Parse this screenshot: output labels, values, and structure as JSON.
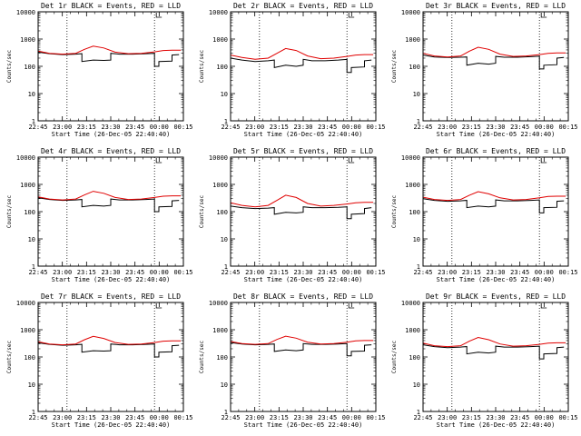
{
  "chart_data": [
    {
      "type": "line",
      "title": "Det 1r BLACK = Events, RED = LLD",
      "xlabel": "Start Time (26-Dec-05 22:40:40)",
      "ylabel": "Counts/sec",
      "ylog": true,
      "ylim": [
        1,
        10000
      ],
      "yticks": [
        "1",
        "10",
        "100",
        "1000",
        "10000"
      ],
      "xlim": [
        22.67,
        24.33
      ],
      "xticks": [
        "22:45",
        "23:00",
        "23:15",
        "23:30",
        "23:45",
        "00:00",
        "00:15"
      ],
      "vlines": [
        23.0,
        24.0
      ],
      "series": [
        {
          "color": "#000000",
          "x": [
            22.67,
            22.8,
            22.95,
            23.1,
            23.17,
            23.17,
            23.3,
            23.42,
            23.5,
            23.5,
            23.6,
            23.75,
            23.9,
            24.0,
            24.0,
            24.05,
            24.05,
            24.2,
            24.2,
            24.28
          ],
          "values": [
            330,
            290,
            270,
            280,
            290,
            150,
            170,
            165,
            170,
            300,
            280,
            280,
            290,
            300,
            100,
            100,
            150,
            155,
            260,
            270
          ]
        },
        {
          "color": "#e00000",
          "x": [
            22.67,
            22.8,
            22.95,
            23.1,
            23.2,
            23.3,
            23.42,
            23.55,
            23.7,
            23.85,
            24.0,
            24.1,
            24.2,
            24.3
          ],
          "values": [
            360,
            300,
            280,
            300,
            420,
            550,
            470,
            330,
            290,
            300,
            340,
            380,
            390,
            390
          ]
        }
      ]
    },
    {
      "type": "line",
      "title": "Det 2r BLACK = Events, RED = LLD",
      "xlabel": "Start Time (26-Dec-05 22:40:40)",
      "ylabel": "Counts/sec",
      "ylog": true,
      "ylim": [
        1,
        10000
      ],
      "yticks": [
        "1",
        "10",
        "100",
        "1000",
        "10000"
      ],
      "xlim": [
        22.67,
        24.33
      ],
      "xticks": [
        "22:45",
        "23:00",
        "23:15",
        "23:30",
        "23:45",
        "00:00",
        "00:15"
      ],
      "vlines": [
        23.0,
        24.0
      ],
      "series": [
        {
          "color": "#000000",
          "x": [
            22.67,
            22.8,
            22.95,
            23.1,
            23.17,
            23.17,
            23.3,
            23.42,
            23.5,
            23.5,
            23.6,
            23.75,
            23.9,
            24.0,
            24.0,
            24.05,
            24.05,
            24.2,
            24.2,
            24.28
          ],
          "values": [
            200,
            170,
            150,
            160,
            170,
            90,
            110,
            100,
            110,
            180,
            160,
            160,
            170,
            180,
            60,
            60,
            90,
            95,
            160,
            170
          ]
        },
        {
          "color": "#e00000",
          "x": [
            22.67,
            22.8,
            22.95,
            23.1,
            23.2,
            23.3,
            23.42,
            23.55,
            23.7,
            23.85,
            24.0,
            24.1,
            24.2,
            24.3
          ],
          "values": [
            260,
            210,
            180,
            200,
            300,
            450,
            380,
            240,
            190,
            200,
            230,
            260,
            270,
            270
          ]
        }
      ]
    },
    {
      "type": "line",
      "title": "Det 3r BLACK = Events, RED = LLD",
      "xlabel": "Start Time (26-Dec-05 22:40:40)",
      "ylabel": "Counts/sec",
      "ylog": true,
      "ylim": [
        1,
        10000
      ],
      "yticks": [
        "1",
        "10",
        "100",
        "1000",
        "10000"
      ],
      "xlim": [
        22.67,
        24.33
      ],
      "xticks": [
        "22:45",
        "23:00",
        "23:15",
        "23:30",
        "23:45",
        "00:00",
        "00:15"
      ],
      "vlines": [
        23.0,
        24.0
      ],
      "series": [
        {
          "color": "#000000",
          "x": [
            22.67,
            22.8,
            22.95,
            23.1,
            23.17,
            23.17,
            23.3,
            23.42,
            23.5,
            23.5,
            23.6,
            23.75,
            23.9,
            24.0,
            24.0,
            24.05,
            24.05,
            24.2,
            24.2,
            24.28
          ],
          "values": [
            260,
            220,
            210,
            215,
            220,
            110,
            130,
            120,
            130,
            230,
            215,
            215,
            225,
            235,
            80,
            80,
            110,
            115,
            200,
            210
          ]
        },
        {
          "color": "#e00000",
          "x": [
            22.67,
            22.8,
            22.95,
            23.1,
            23.2,
            23.3,
            23.42,
            23.55,
            23.7,
            23.85,
            24.0,
            24.1,
            24.2,
            24.3
          ],
          "values": [
            300,
            240,
            220,
            240,
            360,
            500,
            420,
            280,
            230,
            240,
            270,
            300,
            310,
            310
          ]
        }
      ]
    },
    {
      "type": "line",
      "title": "Det 4r BLACK = Events, RED = LLD",
      "xlabel": "Start Time (26-Dec-05 22:40:40)",
      "ylabel": "Counts/sec",
      "ylog": true,
      "ylim": [
        1,
        10000
      ],
      "yticks": [
        "1",
        "10",
        "100",
        "1000",
        "10000"
      ],
      "xlim": [
        22.67,
        24.33
      ],
      "xticks": [
        "22:45",
        "23:00",
        "23:15",
        "23:30",
        "23:45",
        "00:00",
        "00:15"
      ],
      "vlines": [
        23.0,
        24.0
      ],
      "series": [
        {
          "color": "#000000",
          "x": [
            22.67,
            22.8,
            22.95,
            23.1,
            23.17,
            23.17,
            23.3,
            23.42,
            23.5,
            23.5,
            23.6,
            23.75,
            23.9,
            24.0,
            24.0,
            24.05,
            24.05,
            24.2,
            24.2,
            24.28
          ],
          "values": [
            320,
            280,
            260,
            270,
            280,
            150,
            170,
            160,
            170,
            290,
            270,
            270,
            280,
            290,
            100,
            100,
            150,
            155,
            250,
            260
          ]
        },
        {
          "color": "#e00000",
          "x": [
            22.67,
            22.8,
            22.95,
            23.1,
            23.2,
            23.3,
            23.42,
            23.55,
            23.7,
            23.85,
            24.0,
            24.1,
            24.2,
            24.3
          ],
          "values": [
            350,
            290,
            270,
            290,
            410,
            560,
            470,
            330,
            280,
            290,
            330,
            370,
            380,
            380
          ]
        }
      ]
    },
    {
      "type": "line",
      "title": "Det 5r BLACK = Events, RED = LLD",
      "xlabel": "Start Time (26-Dec-05 22:40:40)",
      "ylabel": "Counts/sec",
      "ylog": true,
      "ylim": [
        1,
        10000
      ],
      "yticks": [
        "1",
        "10",
        "100",
        "1000",
        "10000"
      ],
      "xlim": [
        22.67,
        24.33
      ],
      "xticks": [
        "22:45",
        "23:00",
        "23:15",
        "23:30",
        "23:45",
        "00:00",
        "00:15"
      ],
      "vlines": [
        23.0,
        24.0
      ],
      "series": [
        {
          "color": "#000000",
          "x": [
            22.67,
            22.8,
            22.95,
            23.1,
            23.17,
            23.17,
            23.3,
            23.42,
            23.5,
            23.5,
            23.6,
            23.75,
            23.9,
            24.0,
            24.0,
            24.05,
            24.05,
            24.2,
            24.2,
            24.28
          ],
          "values": [
            160,
            140,
            130,
            135,
            140,
            80,
            95,
            90,
            95,
            150,
            140,
            140,
            145,
            150,
            55,
            55,
            80,
            85,
            130,
            140
          ]
        },
        {
          "color": "#e00000",
          "x": [
            22.67,
            22.8,
            22.95,
            23.1,
            23.2,
            23.3,
            23.42,
            23.55,
            23.7,
            23.85,
            24.0,
            24.1,
            24.2,
            24.3
          ],
          "values": [
            210,
            170,
            150,
            170,
            260,
            400,
            330,
            200,
            160,
            170,
            190,
            210,
            220,
            220
          ]
        }
      ]
    },
    {
      "type": "line",
      "title": "Det 6r BLACK = Events, RED = LLD",
      "xlabel": "Start Time (26-Dec-05 22:40:40)",
      "ylabel": "Counts/sec",
      "ylog": true,
      "ylim": [
        1,
        10000
      ],
      "yticks": [
        "1",
        "10",
        "100",
        "1000",
        "10000"
      ],
      "xlim": [
        22.67,
        24.33
      ],
      "xticks": [
        "22:45",
        "23:00",
        "23:15",
        "23:30",
        "23:45",
        "00:00",
        "00:15"
      ],
      "vlines": [
        23.0,
        24.0
      ],
      "series": [
        {
          "color": "#000000",
          "x": [
            22.67,
            22.8,
            22.95,
            23.1,
            23.17,
            23.17,
            23.3,
            23.42,
            23.5,
            23.5,
            23.6,
            23.75,
            23.9,
            24.0,
            24.0,
            24.05,
            24.05,
            24.2,
            24.2,
            24.28
          ],
          "values": [
            300,
            260,
            240,
            250,
            260,
            140,
            160,
            150,
            160,
            270,
            250,
            250,
            260,
            270,
            90,
            90,
            140,
            145,
            240,
            250
          ]
        },
        {
          "color": "#e00000",
          "x": [
            22.67,
            22.8,
            22.95,
            23.1,
            23.2,
            23.3,
            23.42,
            23.55,
            23.7,
            23.85,
            24.0,
            24.1,
            24.2,
            24.3
          ],
          "values": [
            340,
            280,
            260,
            280,
            400,
            540,
            450,
            320,
            270,
            280,
            320,
            360,
            370,
            370
          ]
        }
      ]
    },
    {
      "type": "line",
      "title": "Det 7r BLACK = Events, RED = LLD",
      "xlabel": "Start Time (26-Dec-05 22:40:40)",
      "ylabel": "Counts/sec",
      "ylog": true,
      "ylim": [
        1,
        10000
      ],
      "yticks": [
        "1",
        "10",
        "100",
        "1000",
        "10000"
      ],
      "xlim": [
        22.67,
        24.33
      ],
      "xticks": [
        "22:45",
        "23:00",
        "23:15",
        "23:30",
        "23:45",
        "00:00",
        "00:15"
      ],
      "vlines": [
        23.0,
        24.0
      ],
      "series": [
        {
          "color": "#000000",
          "x": [
            22.67,
            22.8,
            22.95,
            23.1,
            23.17,
            23.17,
            23.3,
            23.42,
            23.5,
            23.5,
            23.6,
            23.75,
            23.9,
            24.0,
            24.0,
            24.05,
            24.05,
            24.2,
            24.2,
            24.28
          ],
          "values": [
            330,
            290,
            270,
            280,
            290,
            150,
            170,
            165,
            170,
            300,
            280,
            280,
            290,
            300,
            100,
            100,
            150,
            155,
            260,
            270
          ]
        },
        {
          "color": "#e00000",
          "x": [
            22.67,
            22.8,
            22.95,
            23.1,
            23.2,
            23.3,
            23.42,
            23.55,
            23.7,
            23.85,
            24.0,
            24.1,
            24.2,
            24.3
          ],
          "values": [
            360,
            300,
            280,
            300,
            430,
            570,
            480,
            340,
            290,
            300,
            340,
            380,
            390,
            390
          ]
        }
      ]
    },
    {
      "type": "line",
      "title": "Det 8r BLACK = Events, RED = LLD",
      "xlabel": "Start Time (26-Dec-05 22:40:40)",
      "ylabel": "Counts/sec",
      "ylog": true,
      "ylim": [
        1,
        10000
      ],
      "yticks": [
        "1",
        "10",
        "100",
        "1000",
        "10000"
      ],
      "xlim": [
        22.67,
        24.33
      ],
      "xticks": [
        "22:45",
        "23:00",
        "23:15",
        "23:30",
        "23:45",
        "00:00",
        "00:15"
      ],
      "vlines": [
        23.0,
        24.0
      ],
      "series": [
        {
          "color": "#000000",
          "x": [
            22.67,
            22.8,
            22.95,
            23.1,
            23.17,
            23.17,
            23.3,
            23.42,
            23.5,
            23.5,
            23.6,
            23.75,
            23.9,
            24.0,
            24.0,
            24.05,
            24.05,
            24.2,
            24.2,
            24.28
          ],
          "values": [
            340,
            300,
            280,
            290,
            300,
            160,
            180,
            170,
            180,
            310,
            290,
            290,
            300,
            310,
            110,
            110,
            160,
            165,
            270,
            280
          ]
        },
        {
          "color": "#e00000",
          "x": [
            22.67,
            22.8,
            22.95,
            23.1,
            23.2,
            23.3,
            23.42,
            23.55,
            23.7,
            23.85,
            24.0,
            24.1,
            24.2,
            24.3
          ],
          "values": [
            370,
            310,
            290,
            310,
            440,
            580,
            490,
            350,
            300,
            310,
            350,
            390,
            400,
            400
          ]
        }
      ]
    },
    {
      "type": "line",
      "title": "Det 9r BLACK = Events, RED = LLD",
      "xlabel": "Start Time (26-Dec-05 22:40:40)",
      "ylabel": "Counts/sec",
      "ylog": true,
      "ylim": [
        1,
        10000
      ],
      "yticks": [
        "1",
        "10",
        "100",
        "1000",
        "10000"
      ],
      "xlim": [
        22.67,
        24.33
      ],
      "xticks": [
        "22:45",
        "23:00",
        "23:15",
        "23:30",
        "23:45",
        "00:00",
        "00:15"
      ],
      "vlines": [
        23.0,
        24.0
      ],
      "series": [
        {
          "color": "#000000",
          "x": [
            22.67,
            22.8,
            22.95,
            23.1,
            23.17,
            23.17,
            23.3,
            23.42,
            23.5,
            23.5,
            23.6,
            23.75,
            23.9,
            24.0,
            24.0,
            24.05,
            24.05,
            24.2,
            24.2,
            24.28
          ],
          "values": [
            280,
            240,
            220,
            230,
            240,
            130,
            150,
            140,
            150,
            250,
            230,
            230,
            240,
            250,
            85,
            85,
            130,
            135,
            220,
            230
          ]
        },
        {
          "color": "#e00000",
          "x": [
            22.67,
            22.8,
            22.95,
            23.1,
            23.2,
            23.3,
            23.42,
            23.55,
            23.7,
            23.85,
            24.0,
            24.1,
            24.2,
            24.3
          ],
          "values": [
            320,
            260,
            240,
            260,
            380,
            520,
            430,
            300,
            250,
            260,
            290,
            320,
            330,
            330
          ]
        }
      ]
    }
  ]
}
